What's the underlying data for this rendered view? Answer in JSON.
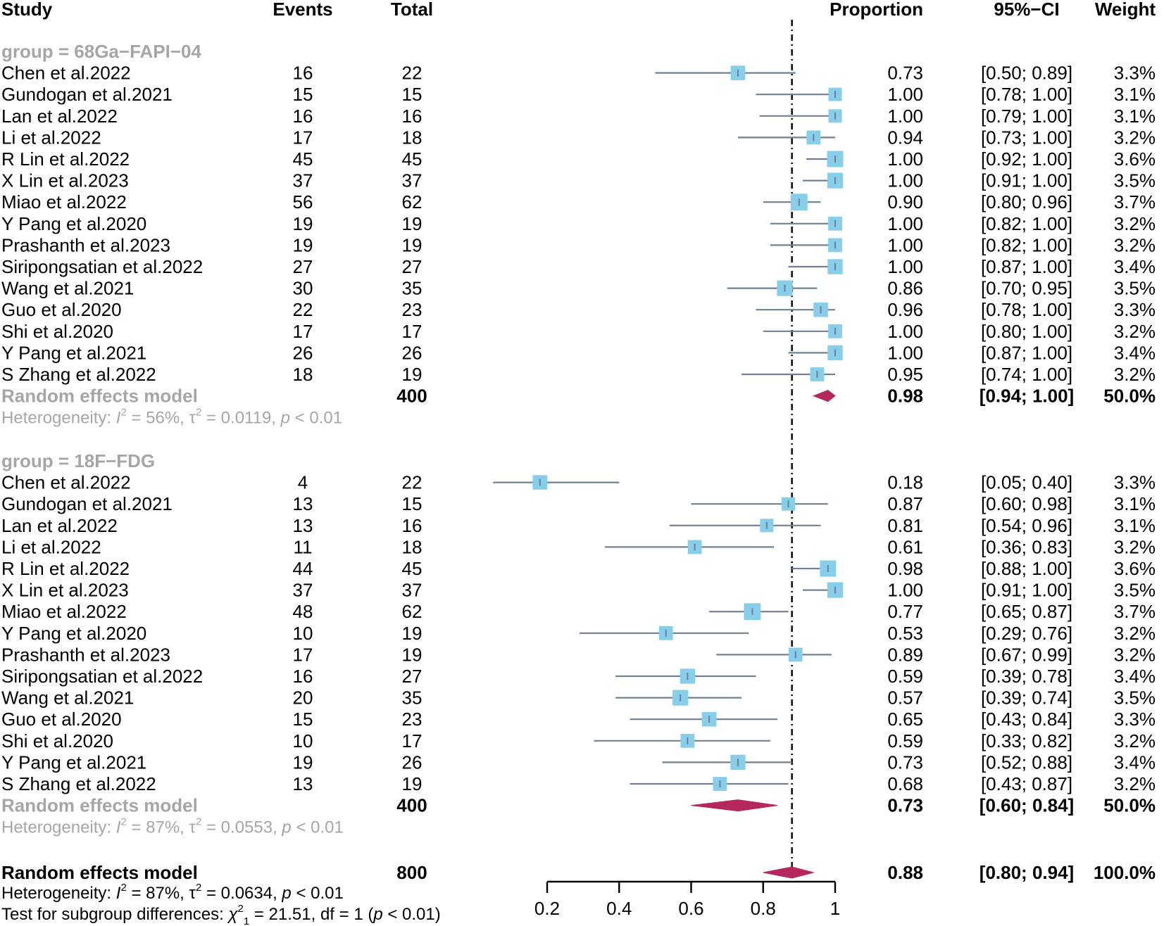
{
  "chart_data": {
    "type": "forest",
    "headers": {
      "study": "Study",
      "events": "Events",
      "total": "Total",
      "proportion": "Proportion",
      "ci": "95%−CI",
      "weight": "Weight"
    },
    "reference_line": 0.88,
    "x_axis": {
      "range": [
        0.2,
        1.0
      ],
      "ticks": [
        0.2,
        0.4,
        0.6,
        0.8,
        1.0
      ],
      "tick_labels": [
        "0.2",
        "0.4",
        "0.6",
        "0.8",
        "1"
      ]
    },
    "groups": [
      {
        "label": "group = 68Ga−FAPI−04",
        "studies": [
          {
            "study": "Chen et al.2022",
            "events": "16",
            "total": "22",
            "proportion": "0.73",
            "ci": "[0.50; 0.89]",
            "weight": "3.3%",
            "est": 0.73,
            "lo": 0.5,
            "hi": 0.89,
            "w": 3.3
          },
          {
            "study": "Gundogan et al.2021",
            "events": "15",
            "total": "15",
            "proportion": "1.00",
            "ci": "[0.78; 1.00]",
            "weight": "3.1%",
            "est": 1.0,
            "lo": 0.78,
            "hi": 1.0,
            "w": 3.1
          },
          {
            "study": "Lan et al.2022",
            "events": "16",
            "total": "16",
            "proportion": "1.00",
            "ci": "[0.79; 1.00]",
            "weight": "3.1%",
            "est": 1.0,
            "lo": 0.79,
            "hi": 1.0,
            "w": 3.1
          },
          {
            "study": "Li et al.2022",
            "events": "17",
            "total": "18",
            "proportion": "0.94",
            "ci": "[0.73; 1.00]",
            "weight": "3.2%",
            "est": 0.94,
            "lo": 0.73,
            "hi": 1.0,
            "w": 3.2
          },
          {
            "study": "R Lin et al.2022",
            "events": "45",
            "total": "45",
            "proportion": "1.00",
            "ci": "[0.92; 1.00]",
            "weight": "3.6%",
            "est": 1.0,
            "lo": 0.92,
            "hi": 1.0,
            "w": 3.6
          },
          {
            "study": "X Lin et al.2023",
            "events": "37",
            "total": "37",
            "proportion": "1.00",
            "ci": "[0.91; 1.00]",
            "weight": "3.5%",
            "est": 1.0,
            "lo": 0.91,
            "hi": 1.0,
            "w": 3.5
          },
          {
            "study": "Miao et al.2022",
            "events": "56",
            "total": "62",
            "proportion": "0.90",
            "ci": "[0.80; 0.96]",
            "weight": "3.7%",
            "est": 0.9,
            "lo": 0.8,
            "hi": 0.96,
            "w": 3.7
          },
          {
            "study": "Y Pang et al.2020",
            "events": "19",
            "total": "19",
            "proportion": "1.00",
            "ci": "[0.82; 1.00]",
            "weight": "3.2%",
            "est": 1.0,
            "lo": 0.82,
            "hi": 1.0,
            "w": 3.2
          },
          {
            "study": "Prashanth et al.2023",
            "events": "19",
            "total": "19",
            "proportion": "1.00",
            "ci": "[0.82; 1.00]",
            "weight": "3.2%",
            "est": 1.0,
            "lo": 0.82,
            "hi": 1.0,
            "w": 3.2
          },
          {
            "study": "Siripongsatian et al.2022",
            "events": "27",
            "total": "27",
            "proportion": "1.00",
            "ci": "[0.87; 1.00]",
            "weight": "3.4%",
            "est": 1.0,
            "lo": 0.87,
            "hi": 1.0,
            "w": 3.4
          },
          {
            "study": "Wang et al.2021",
            "events": "30",
            "total": "35",
            "proportion": "0.86",
            "ci": "[0.70; 0.95]",
            "weight": "3.5%",
            "est": 0.86,
            "lo": 0.7,
            "hi": 0.95,
            "w": 3.5
          },
          {
            "study": "Guo et al.2020",
            "events": "22",
            "total": "23",
            "proportion": "0.96",
            "ci": "[0.78; 1.00]",
            "weight": "3.3%",
            "est": 0.96,
            "lo": 0.78,
            "hi": 1.0,
            "w": 3.3
          },
          {
            "study": "Shi et al.2020",
            "events": "17",
            "total": "17",
            "proportion": "1.00",
            "ci": "[0.80; 1.00]",
            "weight": "3.2%",
            "est": 1.0,
            "lo": 0.8,
            "hi": 1.0,
            "w": 3.2
          },
          {
            "study": "Y Pang et al.2021",
            "events": "26",
            "total": "26",
            "proportion": "1.00",
            "ci": "[0.87; 1.00]",
            "weight": "3.4%",
            "est": 1.0,
            "lo": 0.87,
            "hi": 1.0,
            "w": 3.4
          },
          {
            "study": "S Zhang et al.2022",
            "events": "18",
            "total": "19",
            "proportion": "0.95",
            "ci": "[0.74; 1.00]",
            "weight": "3.2%",
            "est": 0.95,
            "lo": 0.74,
            "hi": 1.0,
            "w": 3.2
          }
        ],
        "summary": {
          "label": "Random effects model",
          "total": "400",
          "proportion": "0.98",
          "ci": "[0.94; 1.00]",
          "weight": "50.0%",
          "est": 0.98,
          "lo": 0.94,
          "hi": 1.0
        },
        "heterogeneity": {
          "prefix": "Heterogeneity: ",
          "I2": "56%",
          "tau2": "0.0119",
          "p": "< 0.01"
        }
      },
      {
        "label": "group = 18F−FDG",
        "studies": [
          {
            "study": "Chen et al.2022",
            "events": "4",
            "total": "22",
            "proportion": "0.18",
            "ci": "[0.05; 0.40]",
            "weight": "3.3%",
            "est": 0.18,
            "lo": 0.05,
            "hi": 0.4,
            "w": 3.3
          },
          {
            "study": "Gundogan et al.2021",
            "events": "13",
            "total": "15",
            "proportion": "0.87",
            "ci": "[0.60; 0.98]",
            "weight": "3.1%",
            "est": 0.87,
            "lo": 0.6,
            "hi": 0.98,
            "w": 3.1
          },
          {
            "study": "Lan et al.2022",
            "events": "13",
            "total": "16",
            "proportion": "0.81",
            "ci": "[0.54; 0.96]",
            "weight": "3.1%",
            "est": 0.81,
            "lo": 0.54,
            "hi": 0.96,
            "w": 3.1
          },
          {
            "study": "Li et al.2022",
            "events": "11",
            "total": "18",
            "proportion": "0.61",
            "ci": "[0.36; 0.83]",
            "weight": "3.2%",
            "est": 0.61,
            "lo": 0.36,
            "hi": 0.83,
            "w": 3.2
          },
          {
            "study": "R Lin et al.2022",
            "events": "44",
            "total": "45",
            "proportion": "0.98",
            "ci": "[0.88; 1.00]",
            "weight": "3.6%",
            "est": 0.98,
            "lo": 0.88,
            "hi": 1.0,
            "w": 3.6
          },
          {
            "study": "X Lin et al.2023",
            "events": "37",
            "total": "37",
            "proportion": "1.00",
            "ci": "[0.91; 1.00]",
            "weight": "3.5%",
            "est": 1.0,
            "lo": 0.91,
            "hi": 1.0,
            "w": 3.5
          },
          {
            "study": "Miao et al.2022",
            "events": "48",
            "total": "62",
            "proportion": "0.77",
            "ci": "[0.65; 0.87]",
            "weight": "3.7%",
            "est": 0.77,
            "lo": 0.65,
            "hi": 0.87,
            "w": 3.7
          },
          {
            "study": "Y Pang et al.2020",
            "events": "10",
            "total": "19",
            "proportion": "0.53",
            "ci": "[0.29; 0.76]",
            "weight": "3.2%",
            "est": 0.53,
            "lo": 0.29,
            "hi": 0.76,
            "w": 3.2
          },
          {
            "study": "Prashanth et al.2023",
            "events": "17",
            "total": "19",
            "proportion": "0.89",
            "ci": "[0.67; 0.99]",
            "weight": "3.2%",
            "est": 0.89,
            "lo": 0.67,
            "hi": 0.99,
            "w": 3.2
          },
          {
            "study": "Siripongsatian et al.2022",
            "events": "16",
            "total": "27",
            "proportion": "0.59",
            "ci": "[0.39; 0.78]",
            "weight": "3.4%",
            "est": 0.59,
            "lo": 0.39,
            "hi": 0.78,
            "w": 3.4
          },
          {
            "study": "Wang et al.2021",
            "events": "20",
            "total": "35",
            "proportion": "0.57",
            "ci": "[0.39; 0.74]",
            "weight": "3.5%",
            "est": 0.57,
            "lo": 0.39,
            "hi": 0.74,
            "w": 3.5
          },
          {
            "study": "Guo et al.2020",
            "events": "15",
            "total": "23",
            "proportion": "0.65",
            "ci": "[0.43; 0.84]",
            "weight": "3.3%",
            "est": 0.65,
            "lo": 0.43,
            "hi": 0.84,
            "w": 3.3
          },
          {
            "study": "Shi et al.2020",
            "events": "10",
            "total": "17",
            "proportion": "0.59",
            "ci": "[0.33; 0.82]",
            "weight": "3.2%",
            "est": 0.59,
            "lo": 0.33,
            "hi": 0.82,
            "w": 3.2
          },
          {
            "study": "Y Pang et al.2021",
            "events": "19",
            "total": "26",
            "proportion": "0.73",
            "ci": "[0.52; 0.88]",
            "weight": "3.4%",
            "est": 0.73,
            "lo": 0.52,
            "hi": 0.88,
            "w": 3.4
          },
          {
            "study": "S Zhang et al.2022",
            "events": "13",
            "total": "19",
            "proportion": "0.68",
            "ci": "[0.43; 0.87]",
            "weight": "3.2%",
            "est": 0.68,
            "lo": 0.43,
            "hi": 0.87,
            "w": 3.2
          }
        ],
        "summary": {
          "label": "Random effects model",
          "total": "400",
          "proportion": "0.73",
          "ci": "[0.60; 0.84]",
          "weight": "50.0%",
          "est": 0.73,
          "lo": 0.6,
          "hi": 0.84
        },
        "heterogeneity": {
          "prefix": "Heterogeneity: ",
          "I2": "87%",
          "tau2": "0.0553",
          "p": "< 0.01"
        }
      }
    ],
    "overall": {
      "label": "Random effects model",
      "total": "800",
      "proportion": "0.88",
      "ci": "[0.80; 0.94]",
      "weight": "100.0%",
      "est": 0.88,
      "lo": 0.8,
      "hi": 0.94,
      "heterogeneity": {
        "prefix": "Heterogeneity: ",
        "I2": "87%",
        "tau2": "0.0634",
        "p": "< 0.01"
      },
      "subgroup_test": {
        "prefix": "Test for subgroup differences: ",
        "chi2": "21.51",
        "df": "1",
        "p": "< 0.01"
      }
    },
    "colors": {
      "square": "#87ceeb",
      "ci_line": "#708090",
      "diamond": "#b5285e",
      "group_label": "#a6a6a6",
      "text": "#000000"
    }
  }
}
